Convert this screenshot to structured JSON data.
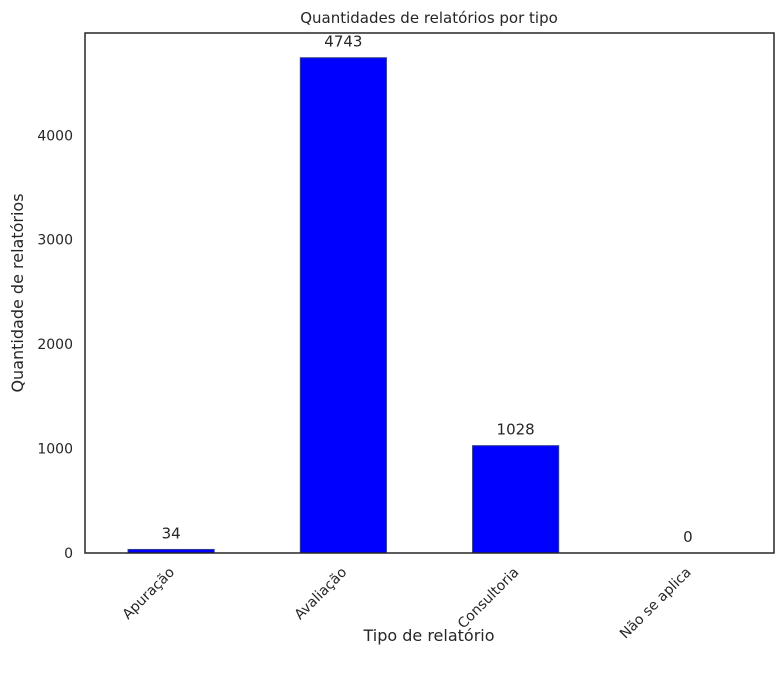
{
  "chart_data": {
    "type": "bar",
    "title": "Quantidades de relatórios por tipo",
    "xlabel": "Tipo de relatório",
    "ylabel": "Quantidade de relatórios",
    "categories": [
      "Apuração",
      "Avaliação",
      "Consultoria",
      "Não se aplica"
    ],
    "values": [
      34,
      4743,
      1028,
      0
    ],
    "data_labels": [
      "34",
      "4743",
      "1028",
      "0"
    ],
    "yticks": [
      0,
      1000,
      2000,
      3000,
      4000
    ],
    "ytick_labels": [
      "0",
      "1000",
      "2000",
      "3000",
      "4000"
    ],
    "ylim": [
      0,
      4980
    ],
    "grid": false,
    "bar_color": "#0000ff",
    "bar_edge_color": "#2f3b8f",
    "xtick_rotation_deg": 45
  }
}
